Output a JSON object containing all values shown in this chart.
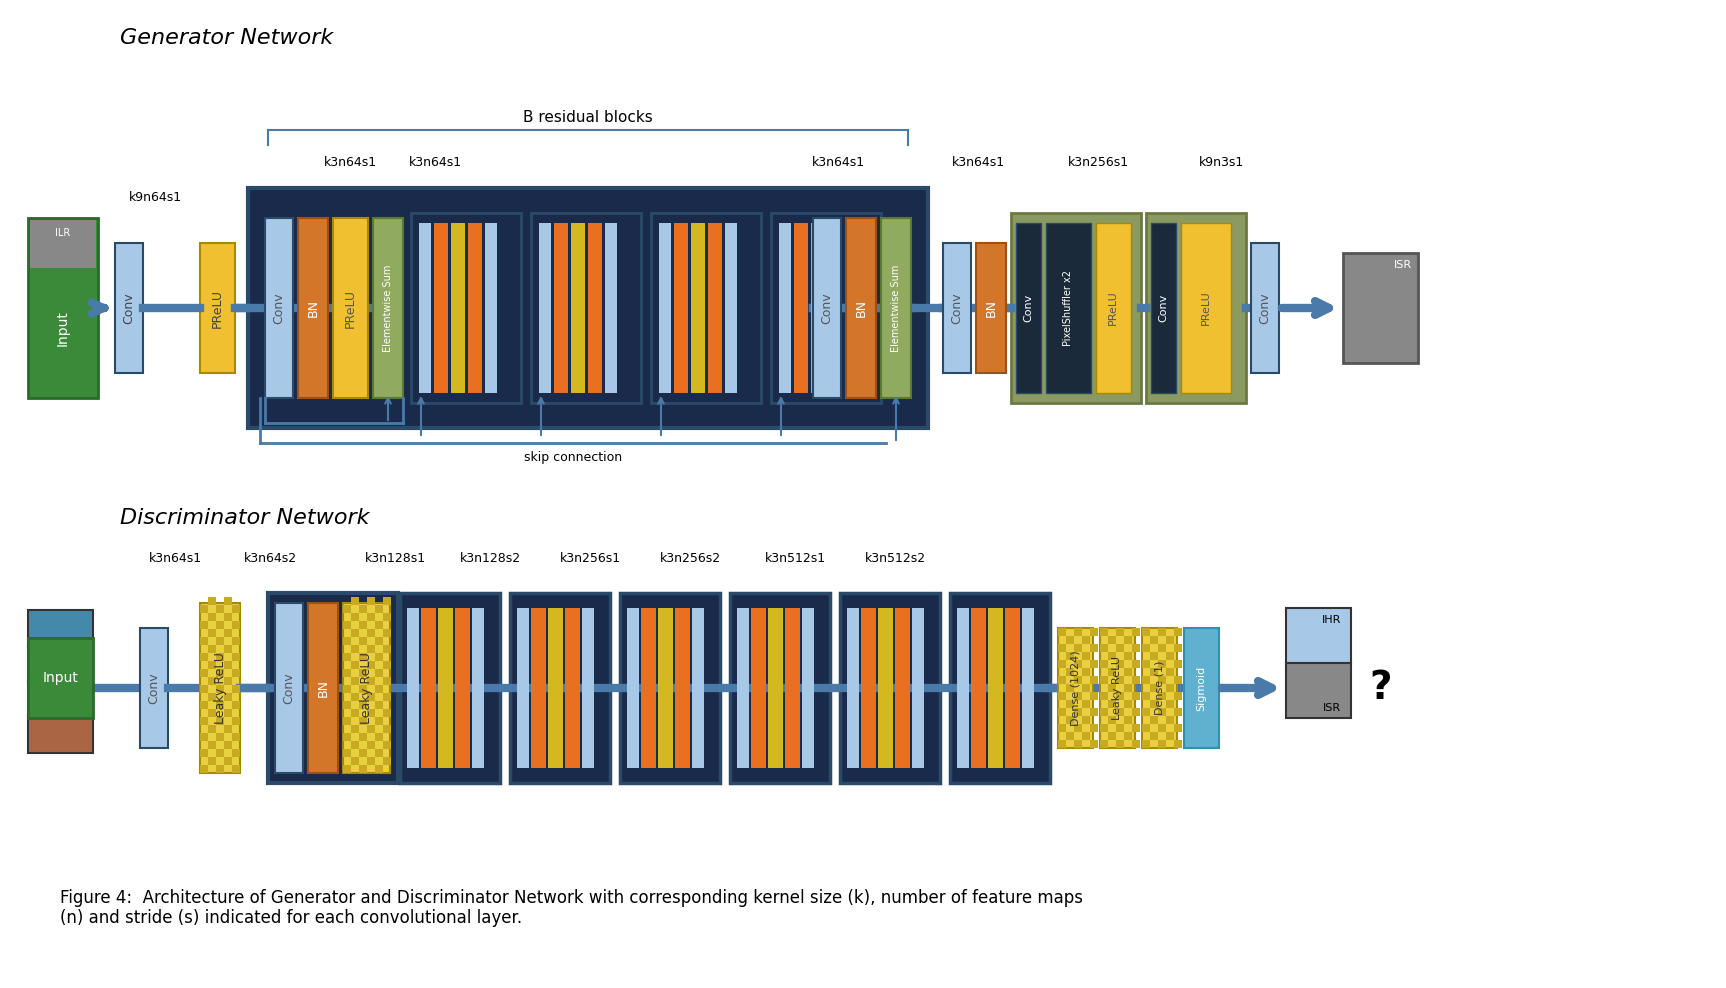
{
  "bg_color": "#ffffff",
  "title_gen": "Generator Network",
  "title_disc": "Discriminator Network",
  "caption": "Figure 4:  Architecture of Generator and Discriminator Network with corresponding kernel size (k), number of feature maps\n(n) and stride (s) indicated for each convolutional layer.",
  "colors": {
    "green": "#3a8a3a",
    "light_blue": "#a8c8e8",
    "orange": "#d4762a",
    "yellow": "#f0c030",
    "dark_navy": "#1a2a4a",
    "olive_green": "#8a9a50",
    "medium_blue": "#5b8db8",
    "arrow_blue": "#4a7aaa",
    "border_dark": "#2a4a6a",
    "pixel_dark": "#1a2a3a",
    "light_green": "#90aa60",
    "yellow_dense": "#e8d040",
    "cyan_sigmoid": "#60b0d0"
  }
}
